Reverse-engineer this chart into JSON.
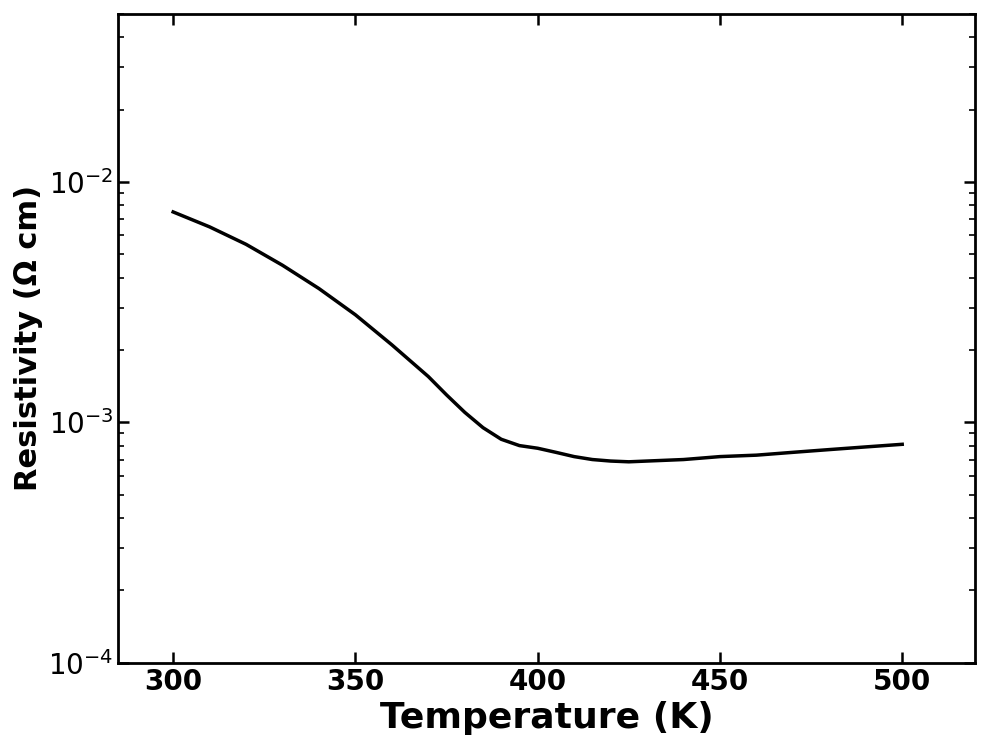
{
  "title": "",
  "xlabel": "Temperature (K)",
  "ylabel": "Resistivity (Ω cm)",
  "xlim": [
    285,
    520
  ],
  "ylim": [
    0.0001,
    0.05
  ],
  "xticks": [
    300,
    350,
    400,
    450,
    500
  ],
  "line_color": "#000000",
  "line_width": 2.5,
  "background_color": "#ffffff",
  "plot_bg_color": "#ffffff",
  "xlabel_fontsize": 26,
  "ylabel_fontsize": 22,
  "tick_fontsize": 20,
  "x_data": [
    300,
    310,
    320,
    330,
    340,
    350,
    360,
    370,
    375,
    380,
    385,
    390,
    395,
    400,
    405,
    410,
    415,
    420,
    425,
    430,
    440,
    450,
    460,
    470,
    480,
    490,
    500
  ],
  "y_data": [
    0.0075,
    0.0065,
    0.0055,
    0.0045,
    0.0036,
    0.0028,
    0.0021,
    0.00155,
    0.0013,
    0.0011,
    0.00095,
    0.00085,
    0.0008,
    0.00078,
    0.00075,
    0.00072,
    0.0007,
    0.00069,
    0.000685,
    0.00069,
    0.0007,
    0.00072,
    0.00073,
    0.00075,
    0.00077,
    0.00079,
    0.00081
  ]
}
